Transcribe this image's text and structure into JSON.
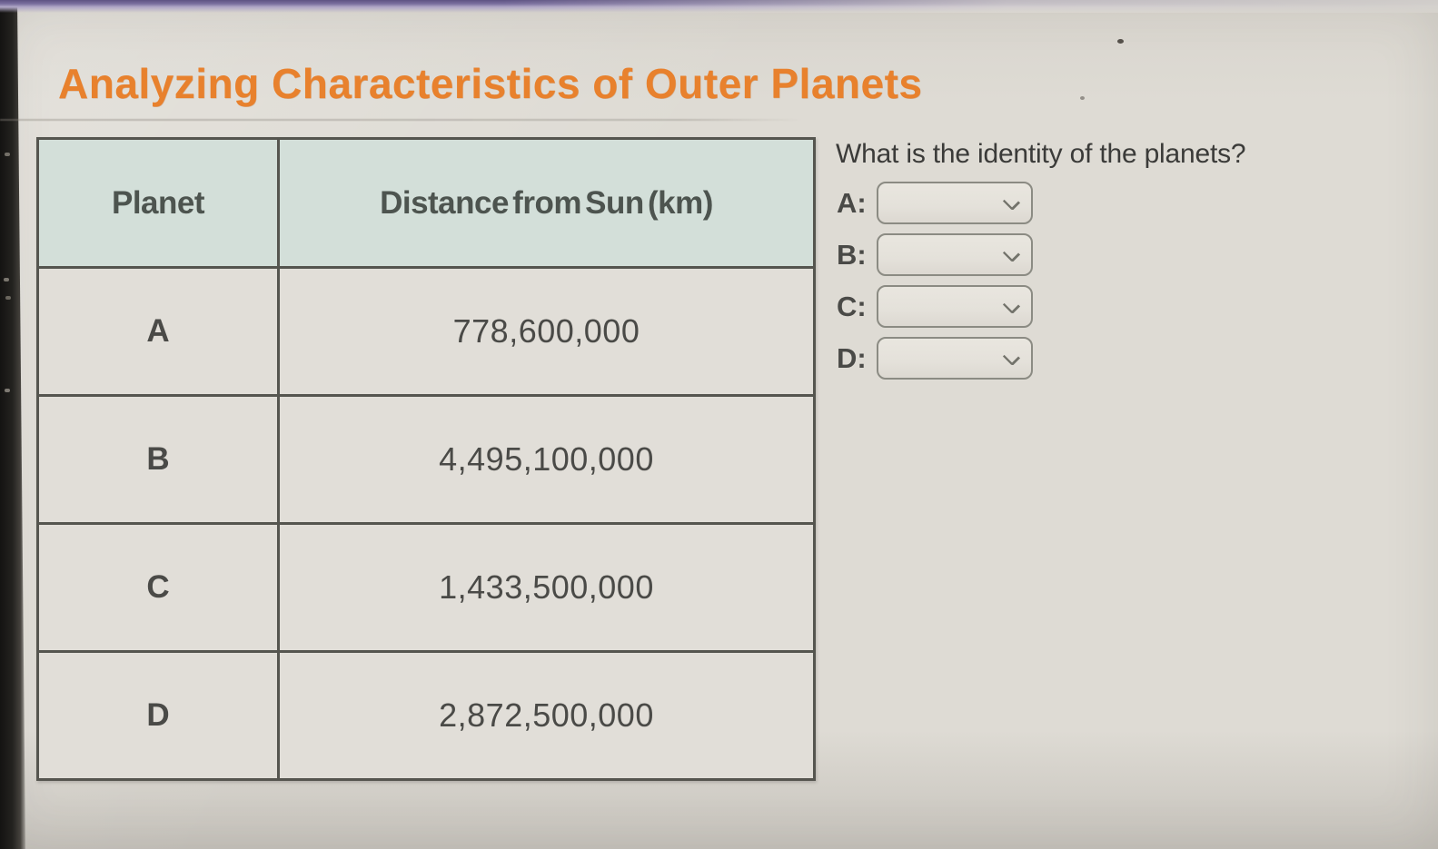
{
  "theme": {
    "page_bg": "#dedbd4",
    "title_color": "#e8812d",
    "topbar_purple": "#5e5383",
    "table_header_bg": "#d3dfd9",
    "table_row_bg": "#e1ded8",
    "table_border": "#55554f",
    "header_text": "#4d544f",
    "body_text": "#4a4a47",
    "question_text": "#3b3b39",
    "select_border": "#8b8b83",
    "select_bg": "#e4e1da",
    "left_strip": "#23221f"
  },
  "header": {
    "title": "Analyzing Characteristics of Outer Planets"
  },
  "table": {
    "columns": [
      "Planet",
      "Distance from Sun (km)"
    ],
    "rows": [
      {
        "planet": "A",
        "distance": "778,600,000"
      },
      {
        "planet": "B",
        "distance": "4,495,100,000"
      },
      {
        "planet": "C",
        "distance": "1,433,500,000"
      },
      {
        "planet": "D",
        "distance": "2,872,500,000"
      }
    ]
  },
  "question": {
    "prompt": "What is the identity of the planets?",
    "dropdowns": [
      {
        "label": "A:",
        "selected_value": ""
      },
      {
        "label": "B:",
        "selected_value": ""
      },
      {
        "label": "C:",
        "selected_value": ""
      },
      {
        "label": "D:",
        "selected_value": ""
      }
    ]
  }
}
